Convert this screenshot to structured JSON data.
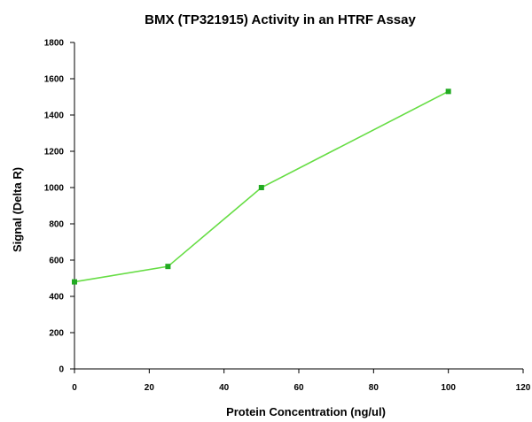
{
  "chart_data": {
    "type": "line",
    "title": "BMX (TP321915) Activity in an HTRF Assay",
    "xlabel": "Protein Concentration (ng/ul)",
    "ylabel": "Signal (Delta R)",
    "xlim": [
      0,
      120
    ],
    "ylim": [
      0,
      1800
    ],
    "xticks": [
      0,
      20,
      40,
      60,
      80,
      100,
      120
    ],
    "yticks": [
      0,
      200,
      400,
      600,
      800,
      1000,
      1200,
      1400,
      1600,
      1800
    ],
    "grid": false,
    "series": [
      {
        "x": [
          0,
          25,
          50,
          100
        ],
        "y": [
          480,
          565,
          1000,
          1530
        ],
        "color": "#66dd44",
        "marker_color": "#22aa22",
        "marker": "square"
      }
    ]
  }
}
